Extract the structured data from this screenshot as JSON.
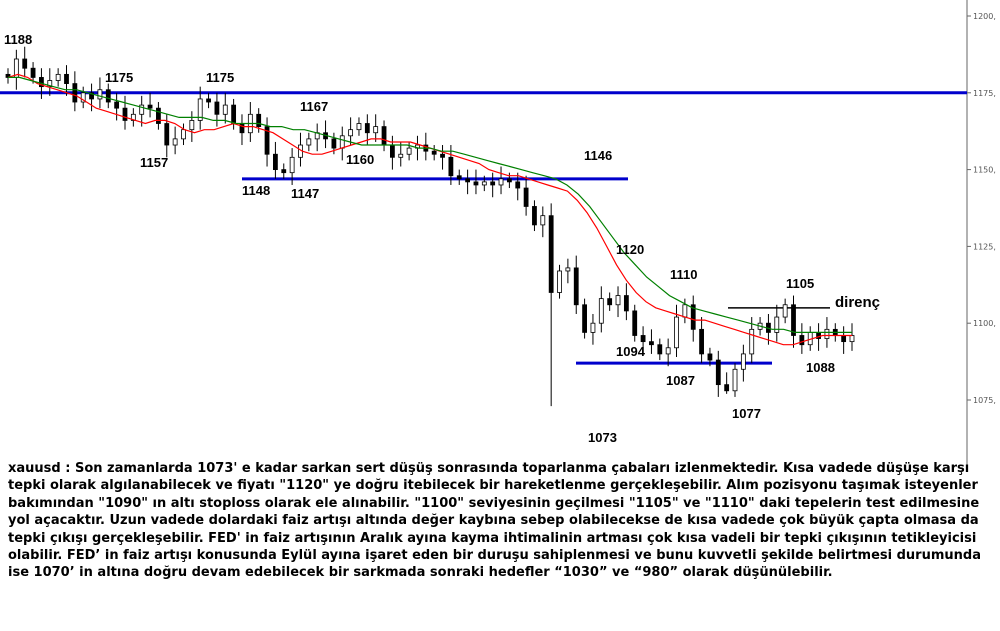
{
  "chart_data": {
    "type": "candlestick",
    "title": "",
    "xlabel": "",
    "ylabel": "",
    "ylim": [
      1062,
      1202
    ],
    "y_ticks": [
      1075,
      1100,
      1125,
      1150,
      1175,
      1200
    ],
    "y_tick_labels": [
      "1075,",
      "1100,",
      "1125,",
      "1150,",
      "1175,",
      "1200,"
    ],
    "grid": false,
    "closes": [
      1180,
      1186,
      1183,
      1180,
      1177,
      1179,
      1181,
      1178,
      1172,
      1175,
      1173,
      1176,
      1172,
      1170,
      1166,
      1168,
      1171,
      1170,
      1165,
      1158,
      1160,
      1163,
      1166,
      1173,
      1172,
      1168,
      1171,
      1165,
      1162,
      1168,
      1164,
      1155,
      1150,
      1149,
      1154,
      1158,
      1160,
      1162,
      1160,
      1157,
      1161,
      1163,
      1165,
      1162,
      1164,
      1158,
      1154,
      1155,
      1157,
      1158,
      1156,
      1155,
      1154,
      1148,
      1147,
      1146,
      1145,
      1146,
      1145,
      1147,
      1146,
      1144,
      1138,
      1132,
      1135,
      1110,
      1117,
      1118,
      1106,
      1097,
      1100,
      1108,
      1106,
      1109,
      1104,
      1096,
      1094,
      1093,
      1090,
      1092,
      1102,
      1106,
      1098,
      1090,
      1088,
      1080,
      1078,
      1085,
      1090,
      1098,
      1100,
      1097,
      1102,
      1106,
      1096,
      1093,
      1097,
      1095,
      1098,
      1096,
      1094,
      1096
    ],
    "series": [
      {
        "values": [
          1180,
          1181,
          1180,
          1178,
          1177,
          1176,
          1175,
          1174,
          1172,
          1170,
          1169,
          1168,
          1167,
          1166,
          1165,
          1166,
          1166,
          1165,
          1163,
          1162,
          1163,
          1163,
          1164,
          1165,
          1164,
          1164,
          1163,
          1162,
          1160,
          1158,
          1156,
          1155,
          1155,
          1156,
          1157,
          1158,
          1159,
          1160,
          1160,
          1159,
          1159,
          1159,
          1158,
          1157,
          1156,
          1155,
          1154,
          1153,
          1152,
          1150,
          1149,
          1148,
          1148,
          1147,
          1146,
          1145,
          1144,
          1143,
          1140,
          1136,
          1131,
          1125,
          1119,
          1114,
          1110,
          1107,
          1105,
          1104,
          1103,
          1102,
          1101,
          1101,
          1100,
          1099,
          1098,
          1097,
          1096,
          1095,
          1094,
          1093,
          1093,
          1094,
          1095,
          1096,
          1096,
          1096,
          1096
        ]
      },
      {
        "values": [
          1180,
          1180,
          1179,
          1178,
          1177,
          1176,
          1176,
          1175,
          1174,
          1173,
          1172,
          1171,
          1170,
          1169,
          1168,
          1167,
          1167,
          1167,
          1166,
          1166,
          1165,
          1165,
          1165,
          1164,
          1164,
          1163,
          1163,
          1162,
          1161,
          1160,
          1159,
          1158,
          1158,
          1158,
          1158,
          1158,
          1157,
          1157,
          1156,
          1156,
          1155,
          1154,
          1153,
          1152,
          1151,
          1150,
          1149,
          1148,
          1147,
          1145,
          1142,
          1138,
          1133,
          1128,
          1123,
          1119,
          1115,
          1112,
          1109,
          1107,
          1105,
          1104,
          1103,
          1102,
          1101,
          1100,
          1099,
          1098,
          1098,
          1097,
          1097,
          1097,
          1097,
          1097,
          1097
        ]
      }
    ],
    "horizontal_levels": [
      {
        "value": 1175,
        "color": "#0000cc"
      },
      {
        "value": 1147,
        "color": "#0000cc"
      },
      {
        "value": 1087,
        "color": "#0000cc"
      },
      {
        "value": 1105,
        "color": "#000000",
        "label": "direnç"
      }
    ],
    "annotations": [
      "1188",
      "1175",
      "1175",
      "1157",
      "1167",
      "1160",
      "1148",
      "1147",
      "1146",
      "1120",
      "1110",
      "1094",
      "1087",
      "1073",
      "1077",
      "1105",
      "1088",
      "direnç"
    ],
    "colors": {
      "ma_fast": "#ff0000",
      "ma_slow": "#008000",
      "candle": "#000000",
      "support": "#0000cc"
    }
  },
  "commentary": "xauusd : Son zamanlarda 1073' e kadar sarkan sert düşüş sonrasında toparlanma çabaları izlenmektedir. Kısa vadede düşüşe karşı tepki olarak algılanabilecek ve fiyatı \"1120\" ye doğru itebilecek bir hareketlenme gerçekleşebilir. Alım pozisyonu taşımak isteyenler bakımından \"1090\" ın altı stoploss olarak ele alınabilir. \"1100\" seviyesinin geçilmesi \"1105\" ve \"1110\" daki tepelerin test edilmesine yol açacaktır. Uzun vadede dolardaki faiz artışı altında değer kaybına sebep olabilecekse de kısa vadede çok büyük çapta olmasa da tepki çıkışı gerçekleşebilir. FED' in faiz artışının Aralık ayına kayma ihtimalinin artması çok kısa vadeli bir tepki çıkışının tetikleyicisi olabilir. FED’ in faiz artışı konusunda Eylül ayına işaret eden bir duruşu sahiplenmesi ve bunu kuvvetli şekilde belirtmesi durumunda ise 1070’ in altına doğru devam edebilecek bir sarkmada  sonraki hedefler “1030” ve “980” olarak düşünülebilir."
}
